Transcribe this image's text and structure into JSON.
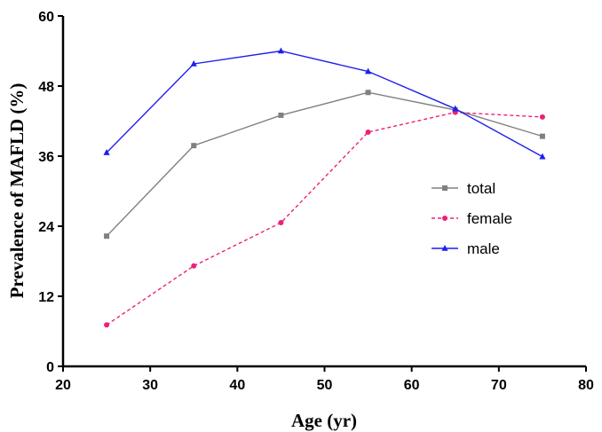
{
  "chart_data": {
    "type": "line",
    "title": "",
    "xlabel": "Age (yr)",
    "ylabel": "Prevalence of MAFLD (%)",
    "xlim": [
      20,
      80
    ],
    "ylim": [
      0,
      60
    ],
    "xticks": [
      20,
      30,
      40,
      50,
      60,
      70,
      80
    ],
    "yticks": [
      0,
      12,
      24,
      36,
      48,
      60
    ],
    "grid": false,
    "legend_position": "center-right",
    "x": [
      25,
      35,
      45,
      55,
      65,
      75
    ],
    "series": [
      {
        "name": "total",
        "values": [
          22.3,
          37.8,
          43.0,
          46.9,
          43.9,
          39.4
        ],
        "color": "#808080",
        "marker": "square",
        "dash": "solid"
      },
      {
        "name": "female",
        "values": [
          7.1,
          17.2,
          24.6,
          40.1,
          43.5,
          42.7
        ],
        "color": "#ee1f7a",
        "marker": "circle",
        "dash": "dashed"
      },
      {
        "name": "male",
        "values": [
          36.6,
          51.8,
          54.0,
          50.5,
          44.1,
          35.9
        ],
        "color": "#1f1fee",
        "marker": "triangle",
        "dash": "solid"
      }
    ]
  }
}
